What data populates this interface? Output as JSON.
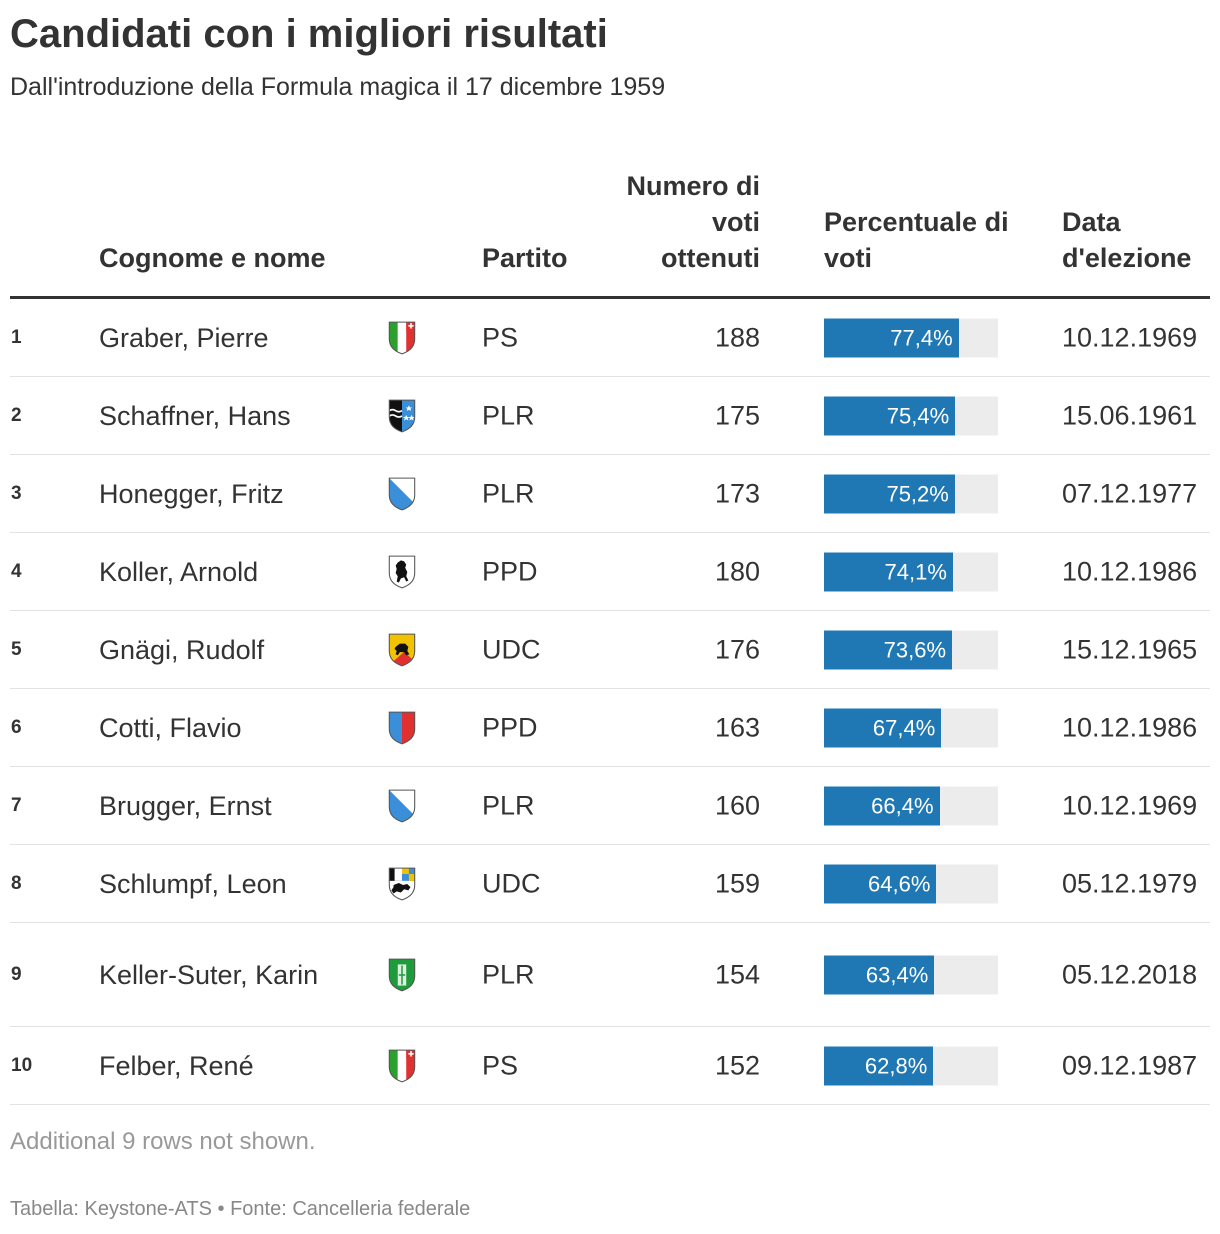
{
  "title": "Candidati con i migliori risultati",
  "subtitle": "Dall'introduzione della Formula magica il 17 dicembre 1959",
  "columns": {
    "name": "Cognome e nome",
    "party": "Partito",
    "votes": "Numero di voti ottenuti",
    "pct": "Percentuale di voti",
    "date": "Data d'elezione"
  },
  "colors": {
    "bar": "#1f78b4",
    "bar_background": "#ececec"
  },
  "chart_data": {
    "type": "table",
    "title": "Candidati con i migliori risultati",
    "subtitle": "Dall'introduzione della Formula magica il 17 dicembre 1959",
    "columns": [
      "",
      "Cognome e nome",
      "",
      "Partito",
      "Numero di voti ottenuti",
      "Percentuale di voti",
      "Data d'elezione"
    ],
    "pct_scale_max": 100,
    "rows": [
      {
        "rank": "1",
        "name": "Graber, Pierre",
        "canton_icon": "ticino-coat-of-arms-icon",
        "party": "PS",
        "votes": "188",
        "pct": 77.4,
        "pct_label": "77,4%",
        "date": "10.12.1969"
      },
      {
        "rank": "2",
        "name": "Schaffner, Hans",
        "canton_icon": "aargau-coat-of-arms-icon",
        "party": "PLR",
        "votes": "175",
        "pct": 75.4,
        "pct_label": "75,4%",
        "date": "15.06.1961"
      },
      {
        "rank": "3",
        "name": "Honegger, Fritz",
        "canton_icon": "zurich-coat-of-arms-icon",
        "party": "PLR",
        "votes": "173",
        "pct": 75.2,
        "pct_label": "75,2%",
        "date": "07.12.1977"
      },
      {
        "rank": "4",
        "name": "Koller, Arnold",
        "canton_icon": "appenzell-coat-of-arms-icon",
        "party": "PPD",
        "votes": "180",
        "pct": 74.1,
        "pct_label": "74,1%",
        "date": "10.12.1986"
      },
      {
        "rank": "5",
        "name": "Gnägi, Rudolf",
        "canton_icon": "bern-coat-of-arms-icon",
        "party": "UDC",
        "votes": "176",
        "pct": 73.6,
        "pct_label": "73,6%",
        "date": "15.12.1965"
      },
      {
        "rank": "6",
        "name": "Cotti, Flavio",
        "canton_icon": "lucerne-coat-of-arms-icon",
        "party": "PPD",
        "votes": "163",
        "pct": 67.4,
        "pct_label": "67,4%",
        "date": "10.12.1986"
      },
      {
        "rank": "7",
        "name": "Brugger, Ernst",
        "canton_icon": "zurich-coat-of-arms-icon",
        "party": "PLR",
        "votes": "160",
        "pct": 66.4,
        "pct_label": "66,4%",
        "date": "10.12.1969"
      },
      {
        "rank": "8",
        "name": "Schlumpf, Leon",
        "canton_icon": "graubuenden-coat-of-arms-icon",
        "party": "UDC",
        "votes": "159",
        "pct": 64.6,
        "pct_label": "64,6%",
        "date": "05.12.1979"
      },
      {
        "rank": "9",
        "name": "Keller-Suter, Karin",
        "canton_icon": "st-gallen-coat-of-arms-icon",
        "party": "PLR",
        "votes": "154",
        "pct": 63.4,
        "pct_label": "63,4%",
        "date": "05.12.2018"
      },
      {
        "rank": "10",
        "name": "Felber, René",
        "canton_icon": "ticino-coat-of-arms-icon",
        "party": "PS",
        "votes": "152",
        "pct": 62.8,
        "pct_label": "62,8%",
        "date": "09.12.1987"
      }
    ]
  },
  "note": "Additional 9 rows not shown.",
  "footer": "Tabella: Keystone-ATS • Fonte: Cancelleria federale"
}
